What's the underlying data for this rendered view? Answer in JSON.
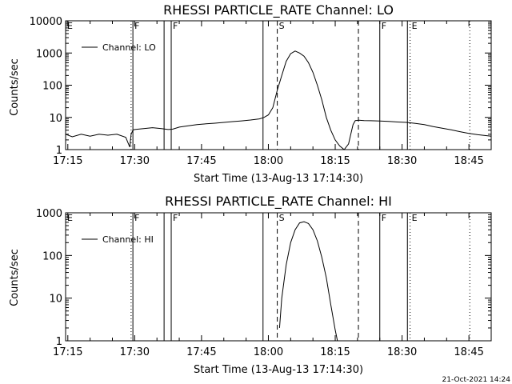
{
  "chart_data": [
    {
      "type": "line",
      "title": "RHESSI PARTICLE_RATE Channel: LO",
      "xlabel": "Start Time (13-Aug-13 17:14:30)",
      "ylabel": "Counts/sec",
      "x_ticks": [
        "17:15",
        "17:30",
        "17:45",
        "18:00",
        "18:15",
        "18:30",
        "18:45"
      ],
      "y_ticks": [
        "1",
        "10",
        "100",
        "1000",
        "10000"
      ],
      "yscale": "log",
      "ylim": [
        1,
        10000
      ],
      "xlim_minutes_after_17_00": [
        14.5,
        66
      ],
      "series": [
        {
          "name": "Channel: LO",
          "x_min": [
            14.5,
            16,
            18,
            20,
            22,
            24,
            26,
            28,
            28.9,
            29.2,
            29.6,
            30,
            32,
            34,
            36,
            37.5,
            38.5,
            40,
            42,
            44,
            46,
            48,
            50,
            52,
            54,
            56,
            58,
            59,
            60,
            61,
            62,
            63,
            64,
            65,
            66,
            67,
            68,
            69,
            70,
            71,
            72,
            73,
            74,
            75,
            76,
            77,
            78,
            78.5,
            79,
            79.5,
            80.3,
            81.5,
            83,
            85,
            87,
            89,
            91,
            93,
            95,
            97,
            99,
            101,
            103,
            105,
            107,
            109,
            110
          ],
          "y": [
            3,
            2.5,
            3,
            2.6,
            3,
            2.8,
            3,
            2.4,
            1.2,
            3,
            4,
            4.2,
            4.5,
            4.8,
            4.5,
            4.2,
            4.3,
            5,
            5.5,
            6,
            6.3,
            6.6,
            7,
            7.4,
            7.8,
            8.3,
            9,
            10,
            12,
            20,
            70,
            200,
            550,
            950,
            1150,
            1000,
            800,
            500,
            250,
            100,
            35,
            10,
            4,
            2,
            1.3,
            1,
            1.5,
            3,
            6,
            8,
            8.2,
            8,
            7.9,
            7.7,
            7.5,
            7.2,
            7,
            6.5,
            6,
            5.2,
            4.6,
            4.1,
            3.6,
            3.2,
            2.9,
            2.7,
            2.6
          ]
        }
      ],
      "markers": [
        {
          "label": "E",
          "x_min": 14.5,
          "style": "solid"
        },
        {
          "label": "",
          "x_min": 29.2,
          "style": "dotted"
        },
        {
          "label": "F",
          "x_min": 29.6,
          "style": "solid"
        },
        {
          "label": "",
          "x_min": 36.6,
          "style": "solid"
        },
        {
          "label": "F",
          "x_min": 38.2,
          "style": "solid"
        },
        {
          "label": "",
          "x_min": 58.8,
          "style": "solid"
        },
        {
          "label": "S",
          "x_min": 62,
          "style": "dashed"
        },
        {
          "label": "",
          "x_min": 80.2,
          "style": "dashed"
        },
        {
          "label": "F",
          "x_min": 85,
          "style": "solid"
        },
        {
          "label": "",
          "x_min": 91.2,
          "style": "solid"
        },
        {
          "label": "E",
          "x_min": 91.8,
          "style": "dotted"
        },
        {
          "label": "",
          "x_min": 105.2,
          "style": "dotted"
        }
      ]
    },
    {
      "type": "line",
      "title": "RHESSI PARTICLE_RATE Channel: HI",
      "xlabel": "Start Time (13-Aug-13 17:14:30)",
      "ylabel": "Counts/sec",
      "x_ticks": [
        "17:15",
        "17:30",
        "17:45",
        "18:00",
        "18:15",
        "18:30",
        "18:45"
      ],
      "y_ticks": [
        "1",
        "10",
        "100",
        "1000"
      ],
      "yscale": "log",
      "ylim": [
        1,
        1000
      ],
      "xlim_minutes_after_17_00": [
        14.5,
        66
      ],
      "series": [
        {
          "name": "Channel: HI",
          "x_min": [
            62.5,
            63,
            64,
            65,
            66,
            67,
            68,
            69,
            70,
            71,
            72,
            73,
            74,
            75,
            75.5
          ],
          "y": [
            2,
            10,
            60,
            200,
            400,
            580,
            620,
            560,
            400,
            220,
            90,
            30,
            7,
            1.8,
            1
          ]
        }
      ],
      "markers": [
        {
          "label": "E",
          "x_min": 14.5,
          "style": "solid"
        },
        {
          "label": "",
          "x_min": 29.2,
          "style": "dotted"
        },
        {
          "label": "F",
          "x_min": 29.6,
          "style": "solid"
        },
        {
          "label": "",
          "x_min": 36.6,
          "style": "solid"
        },
        {
          "label": "F",
          "x_min": 38.2,
          "style": "solid"
        },
        {
          "label": "",
          "x_min": 58.8,
          "style": "solid"
        },
        {
          "label": "S",
          "x_min": 62,
          "style": "dashed"
        },
        {
          "label": "",
          "x_min": 80.2,
          "style": "dashed"
        },
        {
          "label": "F",
          "x_min": 85,
          "style": "solid"
        },
        {
          "label": "",
          "x_min": 91.2,
          "style": "solid"
        },
        {
          "label": "E",
          "x_min": 91.8,
          "style": "dotted"
        },
        {
          "label": "",
          "x_min": 105.2,
          "style": "dotted"
        }
      ]
    }
  ],
  "footer": {
    "timestamp": "21-Oct-2021 14:24"
  }
}
